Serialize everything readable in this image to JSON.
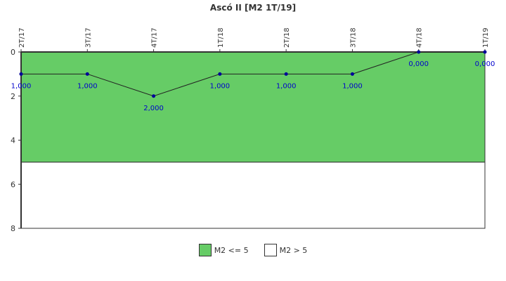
{
  "chart_data": {
    "type": "line",
    "title": "Ascó II [M2 1T/19]",
    "categories": [
      "2T/17",
      "3T/17",
      "4T/17",
      "1T/18",
      "2T/18",
      "3T/18",
      "4T/18",
      "1T/19"
    ],
    "series": [
      {
        "values": [
          1,
          1,
          2,
          1,
          1,
          1,
          0,
          0
        ],
        "labels": [
          "1,000",
          "1,000",
          "2,000",
          "1,000",
          "1,000",
          "1,000",
          "0,000",
          "0,000"
        ],
        "color": "#222222",
        "marker_color": "#000099"
      }
    ],
    "ylim": [
      0,
      8
    ],
    "y_inverted": true,
    "yticks": [
      "0",
      "2",
      "4",
      "6",
      "8"
    ],
    "bands": [
      {
        "name": "M2 <= 5",
        "from": 0,
        "to": 5,
        "color": "#66cc66"
      },
      {
        "name": "M2 > 5",
        "from": 5,
        "to": 8,
        "color": "#ffffff"
      }
    ],
    "label_color": "#0000cc",
    "legend_position": "bottom"
  }
}
